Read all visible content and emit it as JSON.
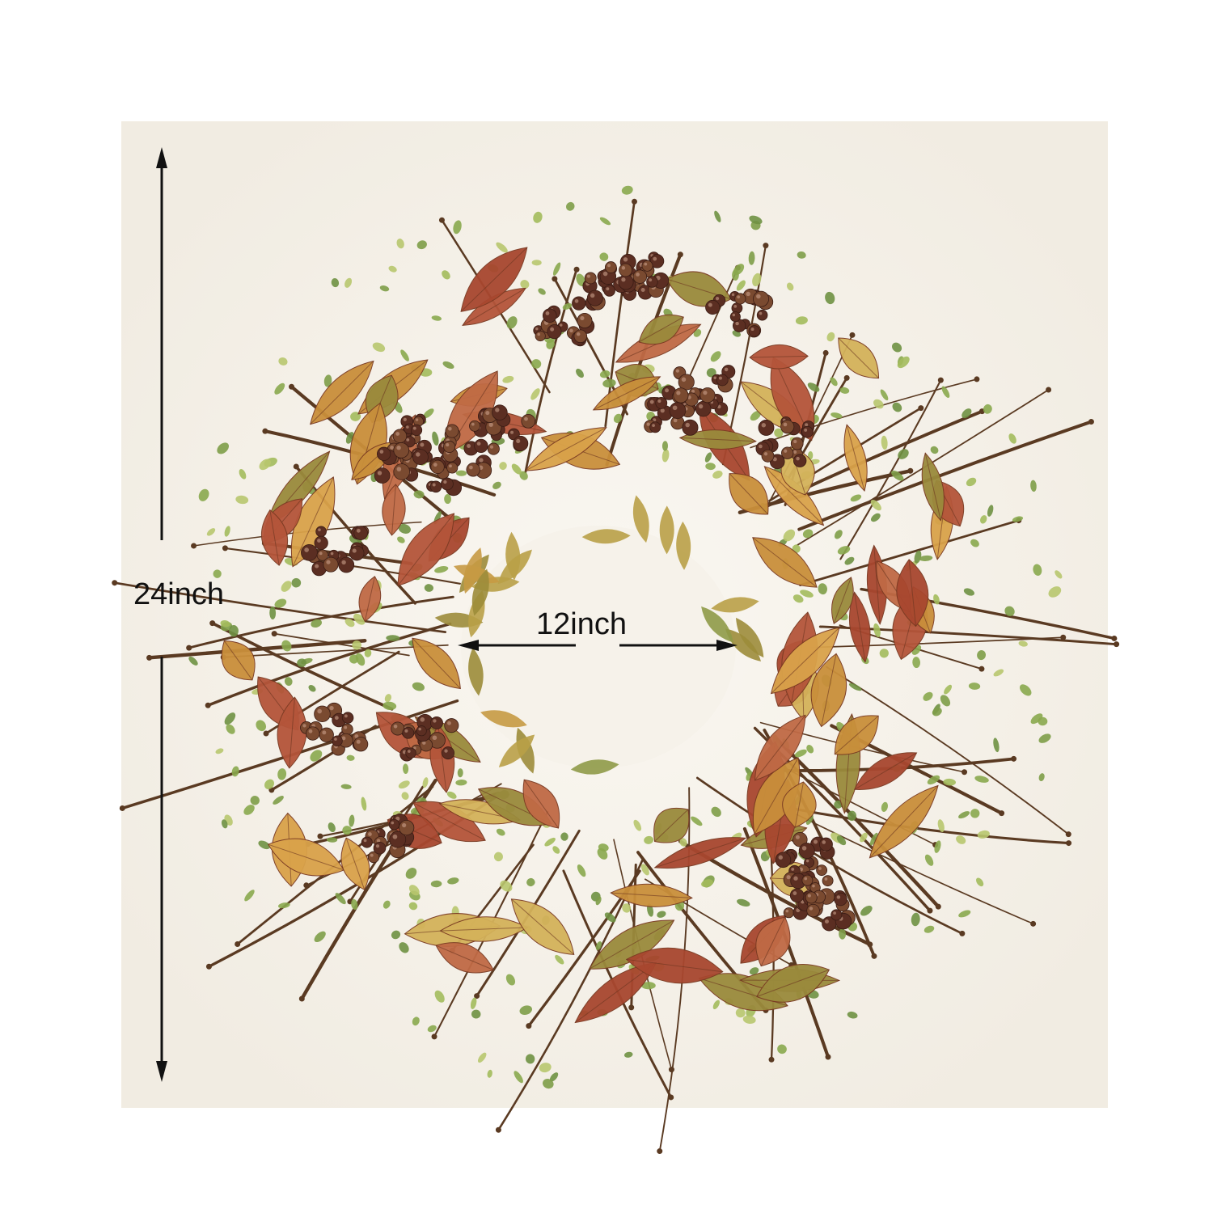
{
  "dimensions": {
    "height_label": "24inch",
    "width_label": "12inch"
  },
  "colors": {
    "background": "#ffffff",
    "backdrop": "#f6f2ea",
    "twig": "#5a3a22",
    "berry": "#5b2e22",
    "rust_leaf": "#b4553a",
    "gold_leaf": "#d9a24a",
    "green_foliage": "#8aa84e",
    "arrow": "#111111"
  },
  "icons": [
    "wreath-illustration",
    "height-arrow",
    "width-arrow"
  ]
}
